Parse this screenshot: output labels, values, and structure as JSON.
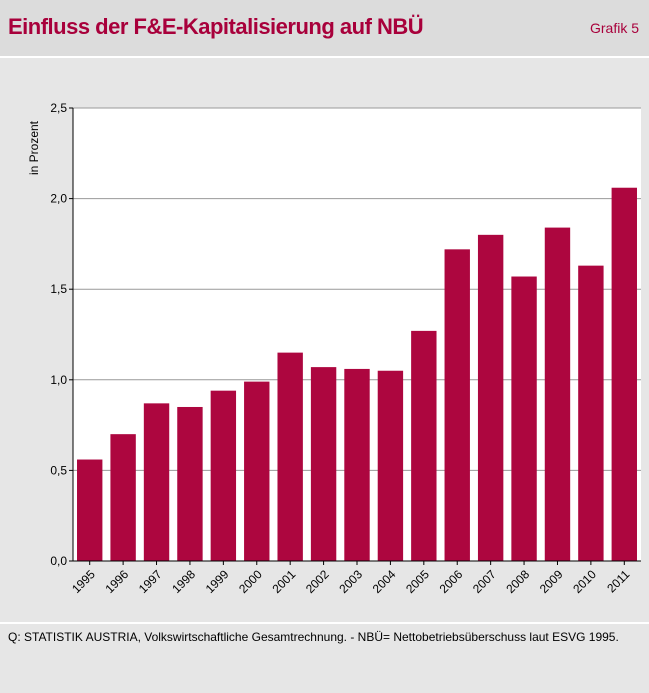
{
  "chart_data": {
    "type": "bar",
    "title": "Einfluss der F&E-Kapitalisierung auf NBÜ",
    "label": "Grafik 5",
    "y_label": "in Prozent",
    "categories": [
      "1995",
      "1996",
      "1997",
      "1998",
      "1999",
      "2000",
      "2001",
      "2002",
      "2003",
      "2004",
      "2005",
      "2006",
      "2007",
      "2008",
      "2009",
      "2010",
      "2011"
    ],
    "values": [
      0.56,
      0.7,
      0.87,
      0.85,
      0.94,
      0.99,
      1.15,
      1.07,
      1.06,
      1.05,
      1.27,
      1.72,
      1.8,
      1.57,
      1.84,
      1.63,
      2.06
    ],
    "color": "#ad063f",
    "ylim": [
      0,
      2.5
    ],
    "yticks": [
      {
        "value": 0,
        "label": "0,0"
      },
      {
        "value": 0.5,
        "label": "0,5"
      },
      {
        "value": 1,
        "label": "1,0"
      },
      {
        "value": 1.5,
        "label": "1,5"
      },
      {
        "value": 2,
        "label": "2,0"
      },
      {
        "value": 2.5,
        "label": "2,5"
      }
    ],
    "grid": true,
    "source": "Q: STATISTIK AUSTRIA, Volkswirtschaftliche Gesamtrechnung. - NBÜ= Nettobetriebsüberschuss laut ESVG 1995."
  }
}
